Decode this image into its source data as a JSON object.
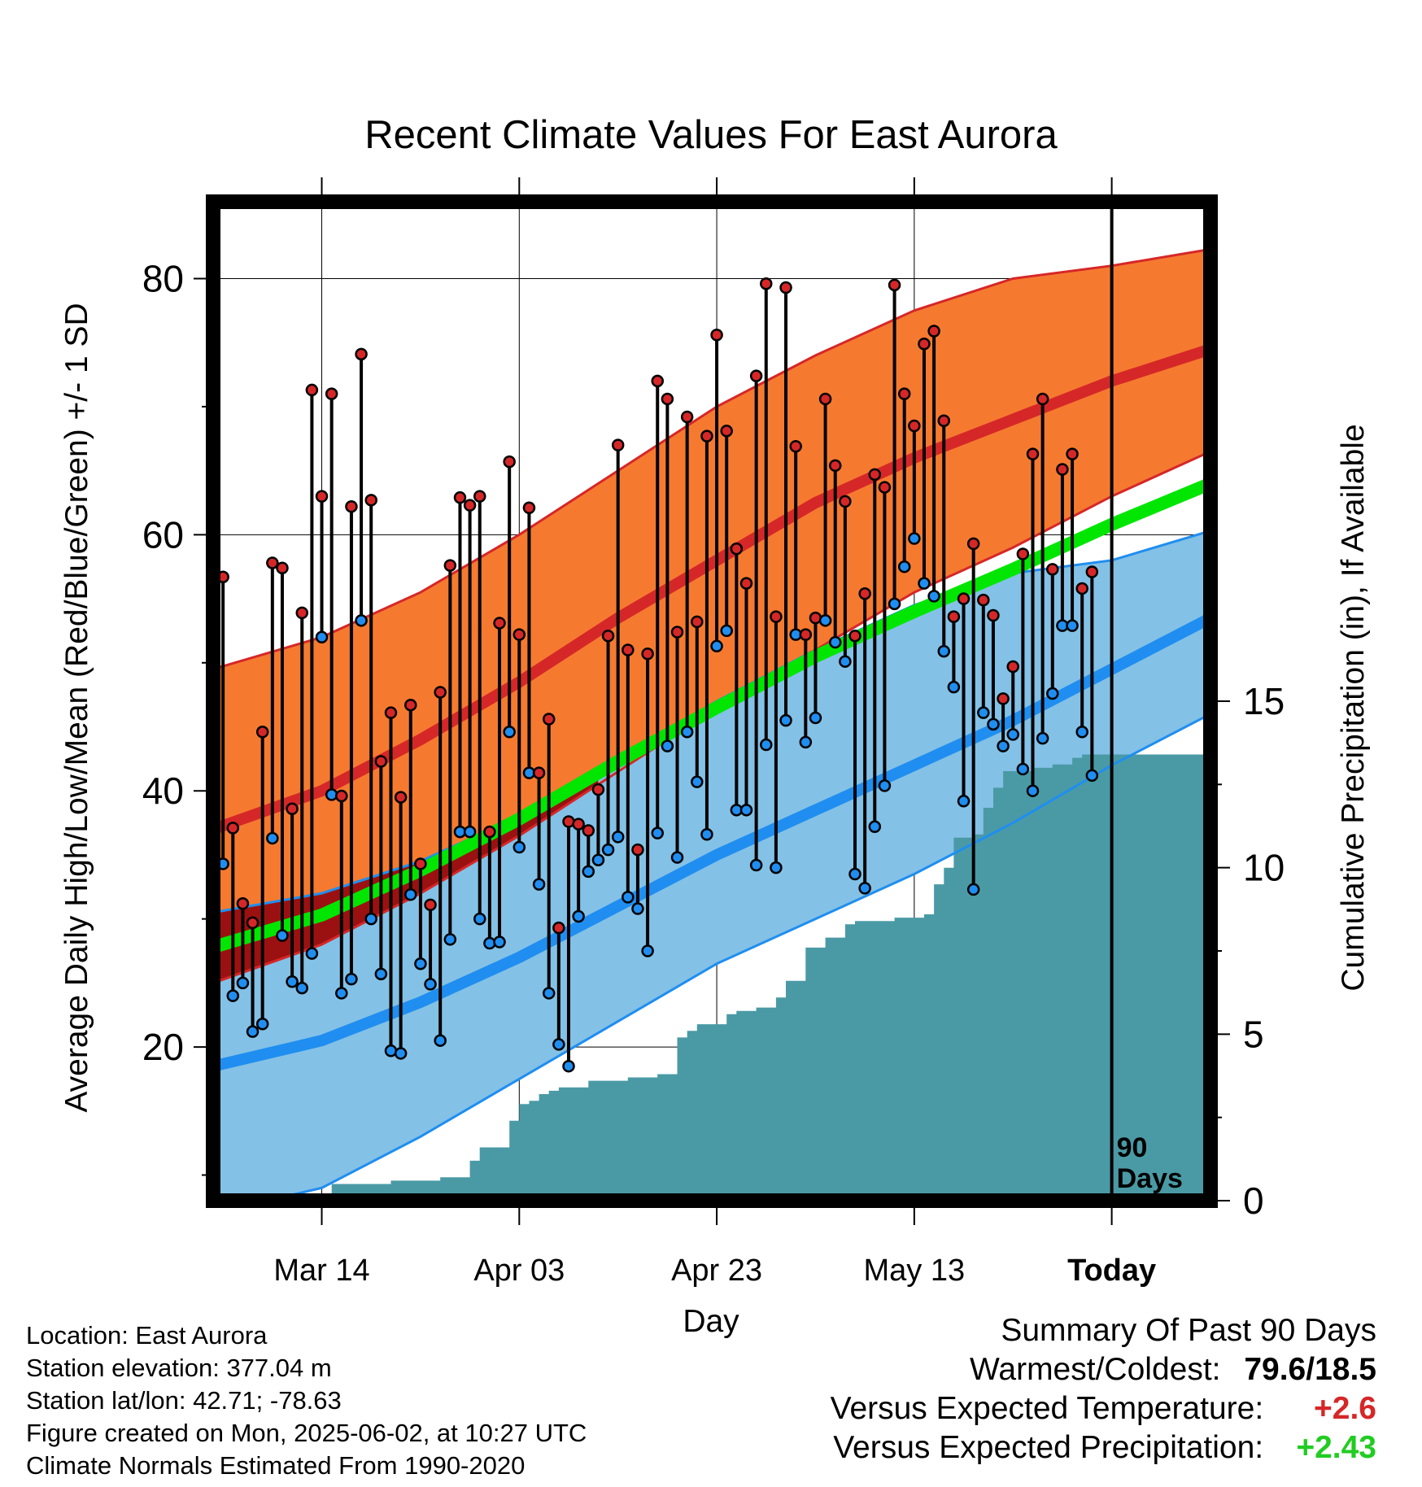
{
  "chart_data": {
    "type": "line",
    "title": "Recent Climate Values For East Aurora",
    "xlabel": "Day",
    "ylabel": "Average Daily High/Low/Mean (Red/Blue/Green) +/- 1 SD",
    "y2label": "Cumulative Precipitation (in), If Available",
    "ylim": [
      8,
      86
    ],
    "y2lim": [
      0,
      30
    ],
    "yticks": [
      20,
      40,
      60,
      80
    ],
    "y2ticks": [
      0,
      5,
      10,
      15
    ],
    "xticks": [
      {
        "day": 12,
        "label": "Mar 14"
      },
      {
        "day": 32,
        "label": "Apr 03"
      },
      {
        "day": 52,
        "label": "Apr 23"
      },
      {
        "day": 72,
        "label": "May 13"
      },
      {
        "day": 92,
        "label": "Today"
      }
    ],
    "xlim": [
      1,
      102
    ],
    "today_day": 92,
    "today_label": [
      "90",
      "Days"
    ],
    "grid": true,
    "colors": {
      "high_band": "#f57a30",
      "high_mean": "#d62728",
      "high_edge": "#d62728",
      "low_band": "#84c1e6",
      "low_mean": "#1f8ef0",
      "low_edge": "#1f8ef0",
      "mean": "#00e600",
      "overlap": "#9b1111",
      "precip": "#4a9aa5",
      "high_dot": "#d62728",
      "low_dot": "#1f8ef0"
    },
    "normal_high": {
      "day": [
        1,
        12,
        22,
        32,
        42,
        52,
        62,
        72,
        82,
        92,
        102
      ],
      "mean": [
        37,
        40,
        44,
        48.5,
        53.5,
        58,
        62.5,
        66,
        69,
        72,
        74.5
      ],
      "upper": [
        49.5,
        52,
        55.5,
        60,
        65,
        70,
        74,
        77.5,
        80,
        81,
        82.3
      ],
      "lower": [
        25,
        28,
        32,
        36.5,
        41.5,
        46.5,
        51,
        55.5,
        59,
        63,
        66.5
      ]
    },
    "normal_low": {
      "day": [
        1,
        12,
        22,
        32,
        42,
        52,
        62,
        72,
        82,
        92,
        102
      ],
      "mean": [
        18.5,
        20.5,
        23.5,
        27,
        31,
        35,
        38.5,
        42,
        45.5,
        49.5,
        53.5
      ],
      "upper": [
        30.5,
        32,
        34.5,
        38,
        42.5,
        47,
        51,
        54.5,
        57,
        58,
        60.3
      ],
      "lower": [
        7,
        9,
        13,
        17.5,
        22,
        26.5,
        30,
        33.5,
        37.5,
        42,
        46
      ]
    },
    "normal_mean": {
      "day": [
        1,
        12,
        22,
        32,
        42,
        52,
        62,
        72,
        82,
        92,
        102
      ],
      "values": [
        27.8,
        30.3,
        33.8,
        37.8,
        42.3,
        46.5,
        50.5,
        54,
        57.3,
        60.8,
        64
      ]
    },
    "daily": [
      {
        "day": 1,
        "high": 56.8,
        "low": 31.5
      },
      {
        "day": 2,
        "high": 56.7,
        "low": 34.3
      },
      {
        "day": 3,
        "high": 37.1,
        "low": 24.0
      },
      {
        "day": 4,
        "high": 31.2,
        "low": 25.0
      },
      {
        "day": 5,
        "high": 29.7,
        "low": 21.2
      },
      {
        "day": 6,
        "high": 44.6,
        "low": 21.8
      },
      {
        "day": 7,
        "high": 57.8,
        "low": 36.3
      },
      {
        "day": 8,
        "high": 57.4,
        "low": 28.7
      },
      {
        "day": 9,
        "high": 38.6,
        "low": 25.1
      },
      {
        "day": 10,
        "high": 53.9,
        "low": 24.6
      },
      {
        "day": 11,
        "high": 71.3,
        "low": 27.3
      },
      {
        "day": 12,
        "high": 63.0,
        "low": 52.0
      },
      {
        "day": 13,
        "high": 71.0,
        "low": 39.7
      },
      {
        "day": 14,
        "high": 39.6,
        "low": 24.2
      },
      {
        "day": 15,
        "high": 62.2,
        "low": 25.3
      },
      {
        "day": 16,
        "high": 74.1,
        "low": 53.3
      },
      {
        "day": 17,
        "high": 62.7,
        "low": 30.0
      },
      {
        "day": 18,
        "high": 42.3,
        "low": 25.7
      },
      {
        "day": 19,
        "high": 46.1,
        "low": 19.7
      },
      {
        "day": 20,
        "high": 39.5,
        "low": 19.5
      },
      {
        "day": 21,
        "high": 46.7,
        "low": 31.9
      },
      {
        "day": 22,
        "high": 34.3,
        "low": 26.5
      },
      {
        "day": 23,
        "high": 31.1,
        "low": 24.9
      },
      {
        "day": 24,
        "high": 47.7,
        "low": 20.5
      },
      {
        "day": 25,
        "high": 57.6,
        "low": 28.4
      },
      {
        "day": 26,
        "high": 62.9,
        "low": 36.8
      },
      {
        "day": 27,
        "high": 62.3,
        "low": 36.8
      },
      {
        "day": 28,
        "high": 63.0,
        "low": 30.0
      },
      {
        "day": 29,
        "high": 36.8,
        "low": 28.1
      },
      {
        "day": 30,
        "high": 53.1,
        "low": 28.2
      },
      {
        "day": 31,
        "high": 65.7,
        "low": 44.6
      },
      {
        "day": 32,
        "high": 52.2,
        "low": 35.6
      },
      {
        "day": 33,
        "high": 62.1,
        "low": 41.4
      },
      {
        "day": 34,
        "high": 41.4,
        "low": 32.7
      },
      {
        "day": 35,
        "high": 45.6,
        "low": 24.2
      },
      {
        "day": 36,
        "high": 29.3,
        "low": 20.2
      },
      {
        "day": 37,
        "high": 37.6,
        "low": 18.5
      },
      {
        "day": 38,
        "high": 37.4,
        "low": 30.2
      },
      {
        "day": 39,
        "high": 36.9,
        "low": 33.7
      },
      {
        "day": 40,
        "high": 40.1,
        "low": 34.6
      },
      {
        "day": 41,
        "high": 52.1,
        "low": 35.4
      },
      {
        "day": 42,
        "high": 67.0,
        "low": 36.4
      },
      {
        "day": 43,
        "high": 51.0,
        "low": 31.7
      },
      {
        "day": 44,
        "high": 35.4,
        "low": 30.8
      },
      {
        "day": 45,
        "high": 50.7,
        "low": 27.5
      },
      {
        "day": 46,
        "high": 72.0,
        "low": 36.7
      },
      {
        "day": 47,
        "high": 70.6,
        "low": 43.5
      },
      {
        "day": 48,
        "high": 52.4,
        "low": 34.8
      },
      {
        "day": 49,
        "high": 69.2,
        "low": 44.6
      },
      {
        "day": 50,
        "high": 53.2,
        "low": 40.7
      },
      {
        "day": 51,
        "high": 67.7,
        "low": 36.6
      },
      {
        "day": 52,
        "high": 75.6,
        "low": 51.3
      },
      {
        "day": 53,
        "high": 68.1,
        "low": 52.5
      },
      {
        "day": 54,
        "high": 58.9,
        "low": 38.5
      },
      {
        "day": 55,
        "high": 56.2,
        "low": 38.5
      },
      {
        "day": 56,
        "high": 72.4,
        "low": 34.2
      },
      {
        "day": 57,
        "high": 79.6,
        "low": 43.6
      },
      {
        "day": 58,
        "high": 53.6,
        "low": 34.0
      },
      {
        "day": 59,
        "high": 79.3,
        "low": 45.5
      },
      {
        "day": 60,
        "high": 66.9,
        "low": 52.2
      },
      {
        "day": 61,
        "high": 52.2,
        "low": 43.8
      },
      {
        "day": 62,
        "high": 53.5,
        "low": 45.7
      },
      {
        "day": 63,
        "high": 70.6,
        "low": 53.3
      },
      {
        "day": 64,
        "high": 65.4,
        "low": 51.6
      },
      {
        "day": 65,
        "high": 62.6,
        "low": 50.1
      },
      {
        "day": 66,
        "high": 52.1,
        "low": 33.5
      },
      {
        "day": 67,
        "high": 55.4,
        "low": 32.4
      },
      {
        "day": 68,
        "high": 64.7,
        "low": 37.2
      },
      {
        "day": 69,
        "high": 63.7,
        "low": 40.4
      },
      {
        "day": 70,
        "high": 79.5,
        "low": 54.6
      },
      {
        "day": 71,
        "high": 71.0,
        "low": 57.5
      },
      {
        "day": 72,
        "high": 68.5,
        "low": 59.7
      },
      {
        "day": 73,
        "high": 74.9,
        "low": 56.2
      },
      {
        "day": 74,
        "high": 75.9,
        "low": 55.2
      },
      {
        "day": 75,
        "high": 68.9,
        "low": 50.9
      },
      {
        "day": 76,
        "high": 53.6,
        "low": 48.1
      },
      {
        "day": 77,
        "high": 55.0,
        "low": 39.2
      },
      {
        "day": 78,
        "high": 59.3,
        "low": 32.3
      },
      {
        "day": 79,
        "high": 54.9,
        "low": 46.1
      },
      {
        "day": 80,
        "high": 53.7,
        "low": 45.2
      },
      {
        "day": 81,
        "high": 47.2,
        "low": 43.5
      },
      {
        "day": 82,
        "high": 49.7,
        "low": 44.4
      },
      {
        "day": 83,
        "high": 58.5,
        "low": 41.7
      },
      {
        "day": 84,
        "high": 66.3,
        "low": 40.0
      },
      {
        "day": 85,
        "high": 70.6,
        "low": 44.1
      },
      {
        "day": 86,
        "high": 57.3,
        "low": 47.6
      },
      {
        "day": 87,
        "high": 65.1,
        "low": 52.9
      },
      {
        "day": 88,
        "high": 66.3,
        "low": 52.9
      },
      {
        "day": 89,
        "high": 55.8,
        "low": 44.6
      },
      {
        "day": 90,
        "high": 57.1,
        "low": 41.2
      }
    ],
    "precip": {
      "day": [
        1,
        12,
        13,
        18,
        19,
        23,
        24,
        27,
        28,
        30,
        31,
        32,
        33,
        34,
        35,
        36,
        38,
        39,
        41,
        42,
        43,
        45,
        46,
        48,
        49,
        50,
        51,
        52,
        53,
        54,
        55,
        56,
        57,
        58,
        59,
        60,
        61,
        62,
        63,
        65,
        66,
        67,
        68,
        69,
        70,
        71,
        72,
        73,
        74,
        75,
        76,
        77,
        78,
        79,
        80,
        81,
        82,
        83,
        84,
        85,
        86,
        87,
        88,
        89,
        102
      ],
      "values": [
        0,
        0,
        0.5,
        0.5,
        0.6,
        0.6,
        0.7,
        1.2,
        1.6,
        1.6,
        2.4,
        2.9,
        3.0,
        3.2,
        3.3,
        3.4,
        3.4,
        3.6,
        3.6,
        3.6,
        3.7,
        3.7,
        3.8,
        4.9,
        5.1,
        5.3,
        5.3,
        5.3,
        5.6,
        5.7,
        5.7,
        5.8,
        5.8,
        6.1,
        6.6,
        6.6,
        7.6,
        7.6,
        7.9,
        8.3,
        8.4,
        8.4,
        8.4,
        8.4,
        8.5,
        8.5,
        8.5,
        8.6,
        9.5,
        10.0,
        10.9,
        10.9,
        11.0,
        11.8,
        12.4,
        12.9,
        12.9,
        12.9,
        13.0,
        13.0,
        13.1,
        13.1,
        13.3,
        13.4,
        13.4
      ]
    }
  },
  "info": {
    "location": "Location: East Aurora",
    "elevation": "Station elevation: 377.04 m",
    "latlon": "Station lat/lon: 42.71; -78.63",
    "created": "Figure created on Mon, 2025-06-02, at 10:27 UTC",
    "normals": "Climate Normals Estimated From 1990-2020"
  },
  "summary": {
    "title": "Summary Of Past 90 Days",
    "warm_label": "Warmest/Coldest:",
    "warm_value": "79.6/18.5",
    "temp_label": "Versus Expected Temperature:",
    "temp_value": "+2.6",
    "temp_color": "#d62728",
    "precip_label": "Versus Expected Precipitation:",
    "precip_value": "+2.43",
    "precip_color": "#22cc22"
  }
}
